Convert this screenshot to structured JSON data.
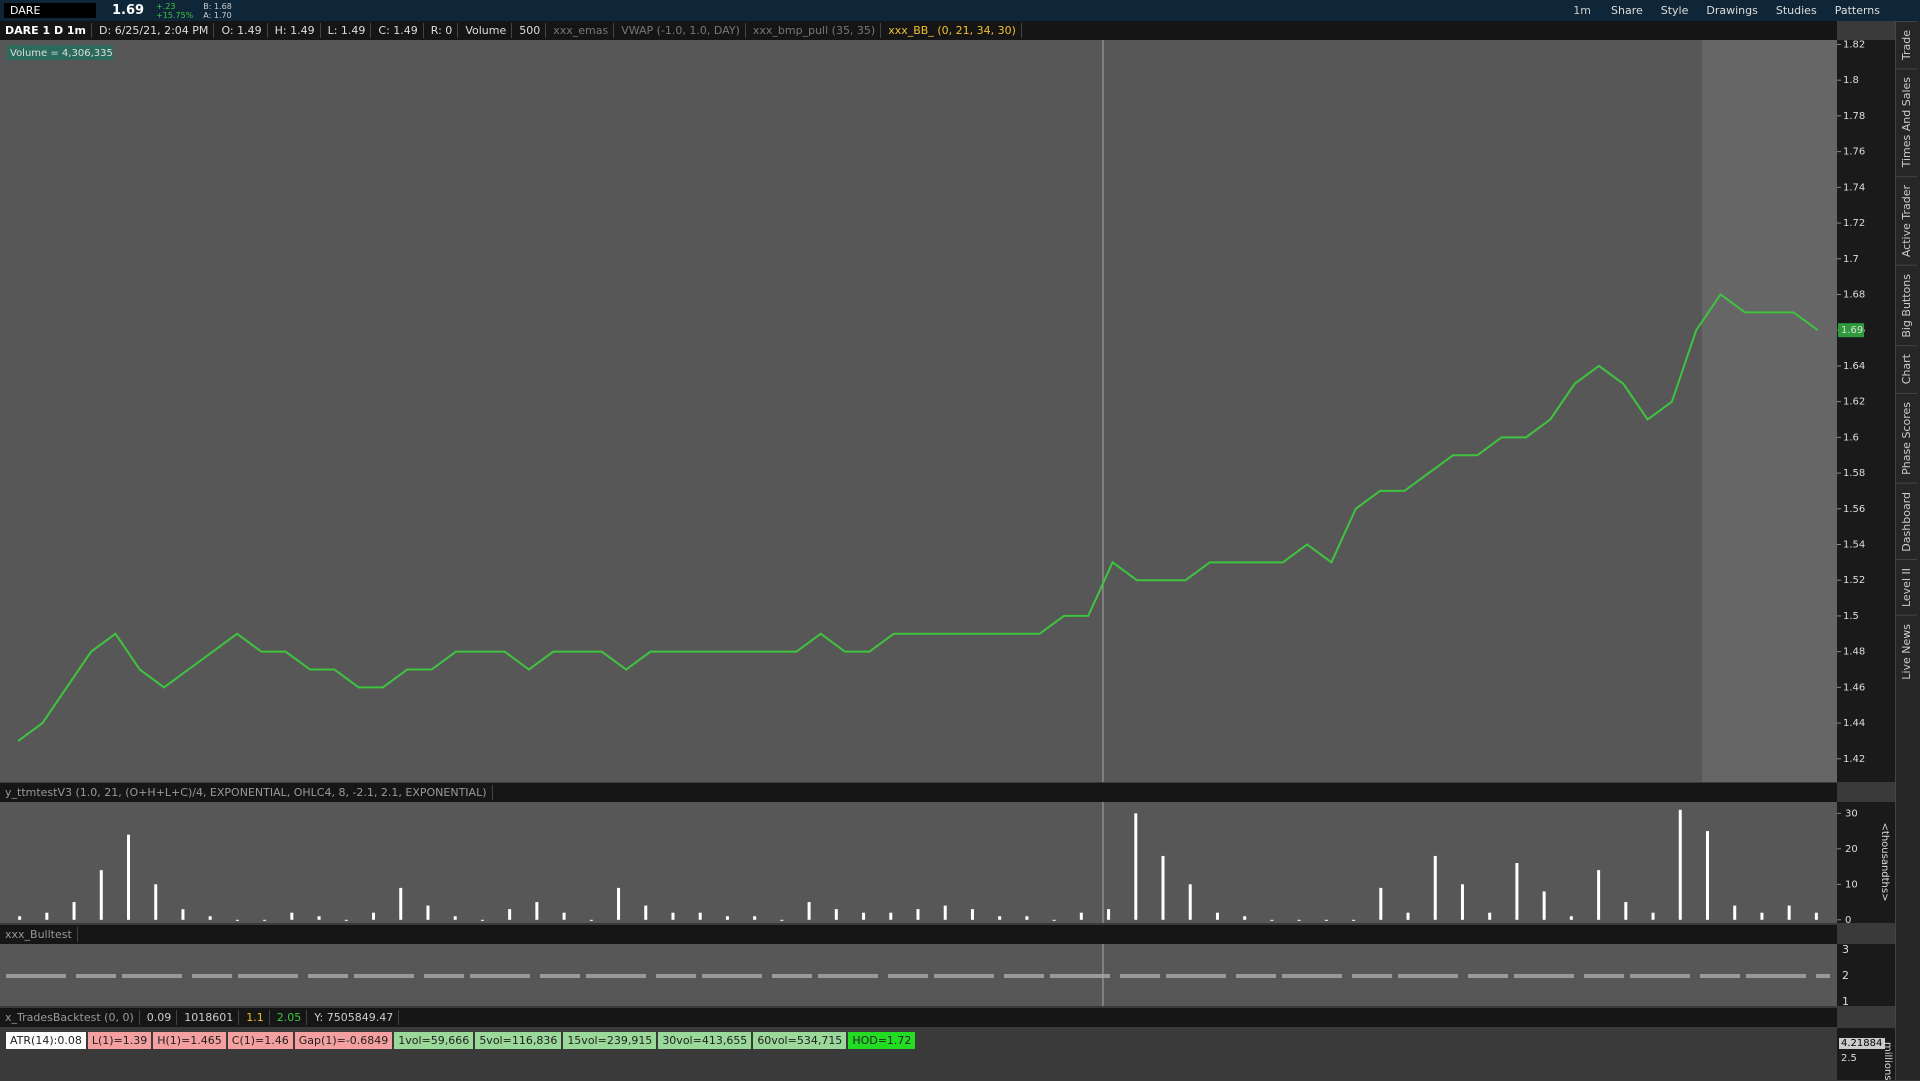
{
  "toolbar": {
    "symbol": "DARE",
    "last": "1.69",
    "change": "+.23",
    "change_pct": "+15.75%",
    "bid": "B: 1.68",
    "ask": "A: 1.70",
    "period": "1m",
    "buttons": [
      "Share",
      "Style",
      "Drawings",
      "Studies",
      "Patterns"
    ]
  },
  "header": {
    "chart_id": "DARE 1 D 1m",
    "fields": [
      "D: 6/25/21, 2:04 PM",
      "O: 1.49",
      "H: 1.49",
      "L: 1.49",
      "C: 1.49",
      "R: 0",
      "Volume",
      "500",
      "xxx_emas",
      "VWAP (-1.0, 1.0, DAY)",
      "xxx_bmp_pull (35, 35)",
      "xxx_BB_ (0, 21, 34, 30)"
    ]
  },
  "volume_label": "Volume = 4,306,335",
  "chart_data": [
    {
      "type": "line",
      "color": "#3ec43e",
      "last_label": "1.69",
      "ylim": [
        1.407,
        1.8225
      ],
      "yticks": [
        1.42,
        1.44,
        1.46,
        1.48,
        1.5,
        1.52,
        1.54,
        1.56,
        1.58,
        1.6,
        1.62,
        1.64,
        1.66,
        1.68,
        1.7,
        1.72,
        1.74,
        1.76,
        1.78,
        1.8,
        1.82
      ],
      "values": [
        1.43,
        1.44,
        1.46,
        1.48,
        1.49,
        1.47,
        1.46,
        1.47,
        1.48,
        1.49,
        1.48,
        1.48,
        1.47,
        1.47,
        1.46,
        1.46,
        1.47,
        1.47,
        1.48,
        1.48,
        1.48,
        1.47,
        1.48,
        1.48,
        1.48,
        1.47,
        1.48,
        1.48,
        1.48,
        1.48,
        1.48,
        1.48,
        1.48,
        1.49,
        1.48,
        1.48,
        1.49,
        1.49,
        1.49,
        1.49,
        1.49,
        1.49,
        1.49,
        1.5,
        1.5,
        1.53,
        1.52,
        1.52,
        1.52,
        1.53,
        1.53,
        1.53,
        1.53,
        1.54,
        1.53,
        1.56,
        1.57,
        1.57,
        1.58,
        1.59,
        1.59,
        1.6,
        1.6,
        1.61,
        1.63,
        1.64,
        1.63,
        1.61,
        1.62,
        1.66,
        1.68,
        1.67,
        1.67,
        1.67,
        1.66
      ]
    },
    {
      "type": "bar",
      "title": "y_ttmtestV3 (1.0, 21, (O+H+L+C)/4, EXPONENTIAL, OHLC4, 8, -2.1, 2.1, EXPONENTIAL)",
      "color": "#ffffff",
      "y_axis_label": "<thousandths>",
      "ylim": [
        -0.9,
        33.2
      ],
      "yticks": [
        0,
        10,
        20,
        30
      ],
      "values": [
        1,
        2,
        5,
        14,
        24,
        10,
        3,
        1,
        0,
        0,
        2,
        1,
        0,
        2,
        9,
        4,
        1,
        0,
        3,
        5,
        2,
        0,
        9,
        4,
        2,
        2,
        1,
        1,
        0,
        5,
        3,
        2,
        2,
        3,
        4,
        3,
        1,
        1,
        0,
        2,
        3,
        30,
        18,
        10,
        2,
        1,
        0,
        0,
        0,
        0,
        9,
        2,
        18,
        10,
        2,
        16,
        8,
        1,
        14,
        5,
        2,
        31,
        25,
        4,
        2,
        4,
        2
      ]
    }
  ],
  "bulltest": {
    "title": "xxx_Bulltest",
    "yticks": [
      "3",
      "2",
      "1"
    ]
  },
  "backtest": {
    "title": "x_TradesBacktest (0, 0)",
    "fields": [
      "0.09",
      "1018601",
      "1.1",
      "2.05",
      "Y: 7505849.47"
    ]
  },
  "stats": [
    {
      "text": "ATR(14):0.08",
      "color": "#ffffff"
    },
    {
      "text": "L(1)=1.39",
      "color": "#f4a0a0"
    },
    {
      "text": "H(1)=1.465",
      "color": "#f4a0a0"
    },
    {
      "text": "C(1)=1.46",
      "color": "#f4a0a0"
    },
    {
      "text": "Gap(1)=-0.6849",
      "color": "#f4a0a0"
    },
    {
      "text": "1vol=59,666",
      "color": "#9bd99b"
    },
    {
      "text": "5vol=116,836",
      "color": "#9bd99b"
    },
    {
      "text": "15vol=239,915",
      "color": "#9bd99b"
    },
    {
      "text": "30vol=413,655",
      "color": "#9bd99b"
    },
    {
      "text": "60vol=534,715",
      "color": "#9bd99b"
    },
    {
      "text": "HOD=1.72",
      "color": "#22dd22"
    }
  ],
  "bottom_axis": {
    "value": "4.21884",
    "tick": "2.5",
    "label": "millions"
  },
  "side_tabs": [
    "Trade",
    "Times And Sales",
    "Active Trader",
    "Big Buttons",
    "Chart",
    "Phase Scores",
    "Dashboard",
    "Level II",
    "Live News"
  ]
}
